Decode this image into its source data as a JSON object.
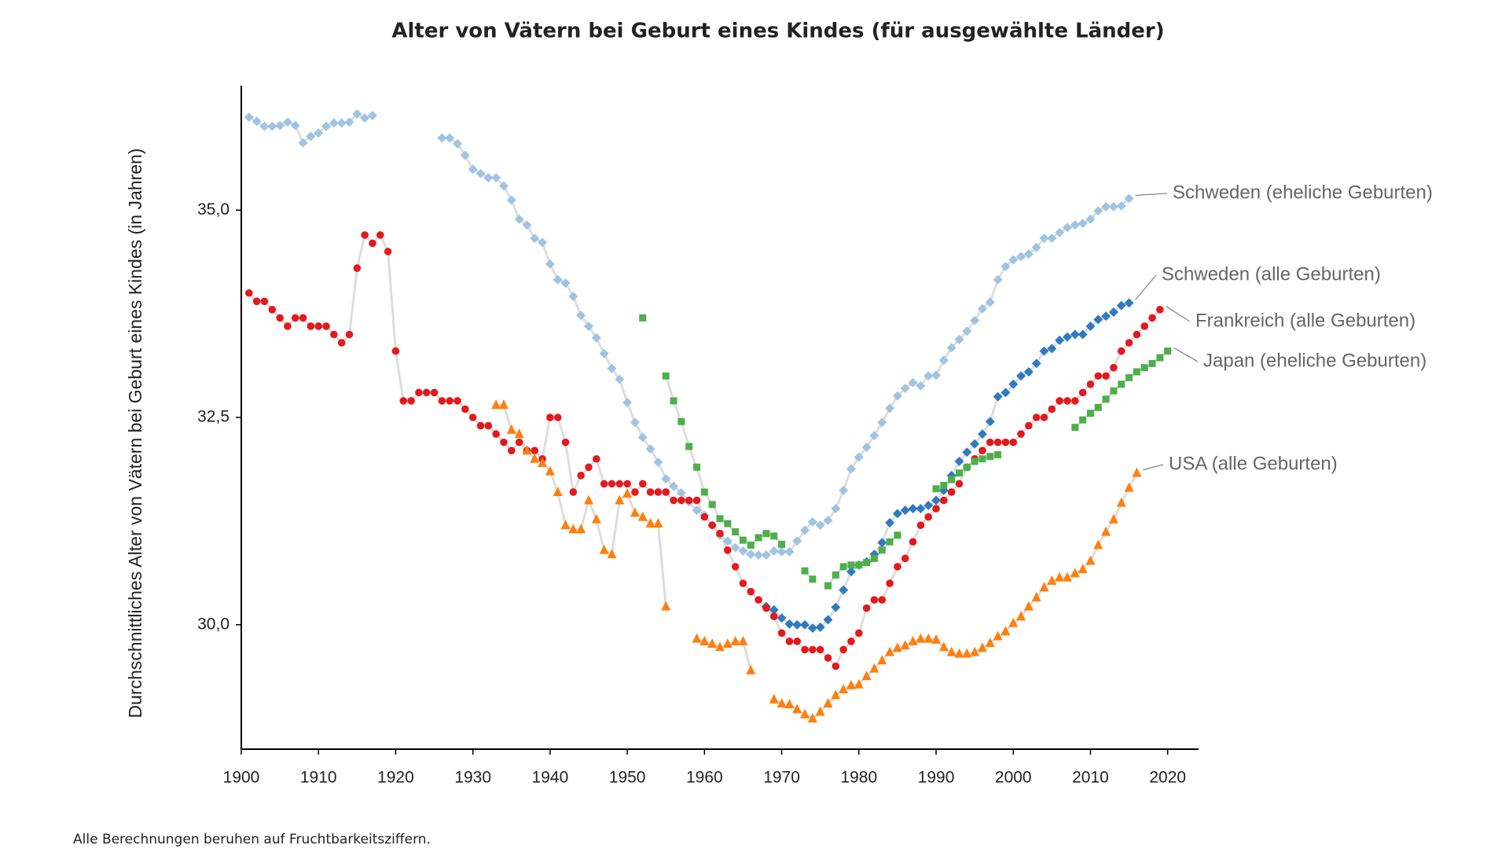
{
  "chart_data": {
    "type": "line",
    "title": "Alter von Vätern bei Geburt eines Kindes (für ausgewählte Länder)",
    "y_label": "Durchschnittliches Alter von Vätern bei Geburt eines Kindes (in Jahren)",
    "note": "Alle Berechnungen beruhen auf Fruchtbarkeitsziffern.",
    "xlim": [
      1900,
      2024
    ],
    "ylim": [
      28.5,
      36.5
    ],
    "xticks": [
      1900,
      1910,
      1920,
      1930,
      1940,
      1950,
      1960,
      1970,
      1980,
      1990,
      2000,
      2010,
      2020
    ],
    "yticks": [
      {
        "value": 30,
        "label": "30,0"
      },
      {
        "value": 32.5,
        "label": "32,5"
      },
      {
        "value": 35,
        "label": "35,0"
      }
    ],
    "grid": false,
    "line_color": "#dddddd",
    "x": [
      1901,
      1902,
      1903,
      1904,
      1905,
      1906,
      1907,
      1908,
      1909,
      1910,
      1911,
      1912,
      1913,
      1914,
      1915,
      1916,
      1917,
      1918,
      1919,
      1920,
      1921,
      1922,
      1923,
      1924,
      1925,
      1926,
      1927,
      1928,
      1929,
      1930,
      1931,
      1932,
      1933,
      1934,
      1935,
      1936,
      1937,
      1938,
      1939,
      1940,
      1941,
      1942,
      1943,
      1944,
      1945,
      1946,
      1947,
      1948,
      1949,
      1950,
      1951,
      1952,
      1953,
      1954,
      1955,
      1956,
      1957,
      1958,
      1959,
      1960,
      1961,
      1962,
      1963,
      1964,
      1965,
      1966,
      1967,
      1968,
      1969,
      1970,
      1971,
      1972,
      1973,
      1974,
      1975,
      1976,
      1977,
      1978,
      1979,
      1980,
      1981,
      1982,
      1983,
      1984,
      1985,
      1986,
      1987,
      1988,
      1989,
      1990,
      1991,
      1992,
      1993,
      1994,
      1995,
      1996,
      1997,
      1998,
      1999,
      2000,
      2001,
      2002,
      2003,
      2004,
      2005,
      2006,
      2007,
      2008,
      2009,
      2010,
      2011,
      2012,
      2013,
      2014,
      2015,
      2016,
      2017,
      2018,
      2019,
      2020
    ],
    "series": [
      {
        "name": "Schweden (eheliche Geburten)",
        "color": "#9fc4e3",
        "marker": "diamond",
        "values": [
          36.12,
          36.07,
          36.01,
          36.01,
          36.02,
          36.06,
          36.02,
          35.81,
          35.89,
          35.93,
          36.01,
          36.05,
          36.05,
          36.06,
          36.16,
          36.11,
          36.14,
          null,
          null,
          null,
          null,
          null,
          null,
          null,
          null,
          35.87,
          35.87,
          35.8,
          35.66,
          35.49,
          35.44,
          35.39,
          35.39,
          35.29,
          35.12,
          34.89,
          34.82,
          34.66,
          34.61,
          34.35,
          34.16,
          34.12,
          33.96,
          33.73,
          33.6,
          33.46,
          33.27,
          33.09,
          32.96,
          32.68,
          32.44,
          32.26,
          32.12,
          31.96,
          31.76,
          31.67,
          31.59,
          31.48,
          31.38,
          31.32,
          31.2,
          31.08,
          31.01,
          30.93,
          30.89,
          30.85,
          30.84,
          30.84,
          30.89,
          30.88,
          30.88,
          31.01,
          31.14,
          31.24,
          31.2,
          31.26,
          31.4,
          31.62,
          31.88,
          32.02,
          32.14,
          32.28,
          32.44,
          32.61,
          32.76,
          32.85,
          32.92,
          32.88,
          33.0,
          33.01,
          33.19,
          33.34,
          33.44,
          33.54,
          33.67,
          33.81,
          33.89,
          34.16,
          34.32,
          34.4,
          34.44,
          34.47,
          34.55,
          34.66,
          34.66,
          34.73,
          34.79,
          34.82,
          34.84,
          34.89,
          34.99,
          35.04,
          35.04,
          35.05,
          35.14,
          null,
          null,
          null,
          null,
          null
        ]
      },
      {
        "name": "Schweden (alle Geburten)",
        "color": "#2f7bbf",
        "marker": "diamond",
        "values": [
          null,
          null,
          null,
          null,
          null,
          null,
          null,
          null,
          null,
          null,
          null,
          null,
          null,
          null,
          null,
          null,
          null,
          null,
          null,
          null,
          null,
          null,
          null,
          null,
          null,
          null,
          null,
          null,
          null,
          null,
          null,
          null,
          null,
          null,
          null,
          null,
          null,
          null,
          null,
          null,
          null,
          null,
          null,
          null,
          null,
          null,
          null,
          null,
          null,
          null,
          null,
          null,
          null,
          null,
          null,
          null,
          null,
          null,
          null,
          null,
          null,
          null,
          null,
          null,
          null,
          null,
          null,
          30.22,
          30.18,
          30.08,
          30.01,
          30.0,
          30.0,
          29.96,
          29.97,
          30.06,
          30.21,
          30.42,
          30.64,
          30.72,
          30.76,
          30.85,
          30.99,
          31.23,
          31.34,
          31.38,
          31.4,
          31.4,
          31.44,
          31.5,
          31.62,
          31.8,
          31.97,
          32.08,
          32.18,
          32.3,
          32.45,
          32.75,
          32.8,
          32.9,
          33.0,
          33.05,
          33.15,
          33.3,
          33.33,
          33.43,
          33.47,
          33.5,
          33.5,
          33.6,
          33.68,
          33.72,
          33.77,
          33.85,
          33.88,
          null,
          null,
          null,
          null,
          null
        ]
      },
      {
        "name": "Frankreich (alle Geburten)",
        "color": "#e3191c",
        "marker": "circle",
        "values": [
          34.0,
          33.9,
          33.9,
          33.8,
          33.7,
          33.6,
          33.7,
          33.7,
          33.6,
          33.6,
          33.6,
          33.5,
          33.4,
          33.5,
          34.3,
          34.7,
          34.6,
          34.7,
          34.5,
          33.3,
          32.7,
          32.7,
          32.8,
          32.8,
          32.8,
          32.7,
          32.7,
          32.7,
          32.6,
          32.5,
          32.4,
          32.4,
          32.3,
          32.2,
          32.1,
          32.2,
          32.1,
          32.1,
          32.0,
          32.5,
          32.5,
          32.2,
          31.6,
          31.8,
          31.9,
          32.0,
          31.7,
          31.7,
          31.7,
          31.7,
          31.6,
          31.7,
          31.6,
          31.6,
          31.6,
          31.5,
          31.5,
          31.5,
          31.5,
          31.3,
          31.2,
          31.1,
          30.9,
          30.7,
          30.5,
          30.4,
          30.3,
          30.2,
          30.1,
          29.9,
          29.8,
          29.8,
          29.7,
          29.7,
          29.7,
          29.6,
          29.5,
          29.7,
          29.8,
          29.9,
          30.2,
          30.3,
          30.3,
          30.5,
          30.7,
          30.8,
          31.0,
          31.2,
          31.3,
          31.4,
          31.5,
          31.6,
          31.7,
          31.9,
          32.0,
          32.1,
          32.2,
          32.2,
          32.2,
          32.2,
          32.3,
          32.4,
          32.5,
          32.5,
          32.6,
          32.7,
          32.7,
          32.7,
          32.8,
          32.9,
          33.0,
          33.0,
          33.1,
          33.3,
          33.4,
          33.5,
          33.6,
          33.7,
          33.8,
          null
        ]
      },
      {
        "name": "Japan (eheliche Geburten)",
        "color": "#4daf4a",
        "marker": "square",
        "values": [
          null,
          null,
          null,
          null,
          null,
          null,
          null,
          null,
          null,
          null,
          null,
          null,
          null,
          null,
          null,
          null,
          null,
          null,
          null,
          null,
          null,
          null,
          null,
          null,
          null,
          null,
          null,
          null,
          null,
          null,
          null,
          null,
          null,
          null,
          null,
          null,
          null,
          null,
          null,
          null,
          null,
          null,
          null,
          null,
          null,
          null,
          null,
          null,
          null,
          null,
          null,
          33.7,
          null,
          null,
          33.0,
          32.7,
          32.45,
          32.15,
          31.9,
          31.6,
          31.45,
          31.28,
          31.22,
          31.12,
          31.02,
          30.96,
          31.05,
          31.1,
          31.07,
          30.97,
          null,
          null,
          30.65,
          30.55,
          null,
          30.47,
          30.6,
          30.7,
          30.72,
          30.72,
          30.75,
          30.8,
          30.9,
          31.0,
          31.08,
          null,
          null,
          null,
          null,
          31.64,
          31.68,
          31.75,
          31.83,
          31.9,
          31.97,
          32.0,
          32.03,
          32.05,
          null,
          null,
          null,
          null,
          null,
          null,
          null,
          null,
          null,
          32.38,
          32.47,
          32.55,
          32.62,
          32.72,
          32.82,
          32.9,
          32.98,
          33.05,
          33.1,
          33.15,
          33.22,
          33.3
        ]
      },
      {
        "name": "USA (alle Geburten)",
        "color": "#ff7f0e",
        "marker": "triangle",
        "values": [
          null,
          null,
          null,
          null,
          null,
          null,
          null,
          null,
          null,
          null,
          null,
          null,
          null,
          null,
          null,
          null,
          null,
          null,
          null,
          null,
          null,
          null,
          null,
          null,
          null,
          null,
          null,
          null,
          null,
          null,
          null,
          null,
          32.65,
          32.65,
          32.35,
          32.3,
          32.1,
          32.0,
          31.95,
          31.85,
          31.6,
          31.2,
          31.15,
          31.15,
          31.5,
          31.27,
          30.9,
          30.85,
          31.5,
          31.58,
          31.35,
          31.3,
          31.22,
          31.22,
          30.22,
          null,
          null,
          null,
          29.83,
          29.8,
          29.77,
          29.73,
          29.77,
          29.8,
          29.8,
          29.45,
          null,
          null,
          29.1,
          29.05,
          29.04,
          28.98,
          28.92,
          28.87,
          28.95,
          29.05,
          29.15,
          29.22,
          29.27,
          29.28,
          29.38,
          29.47,
          29.57,
          29.67,
          29.72,
          29.75,
          29.8,
          29.83,
          29.83,
          29.82,
          29.73,
          29.67,
          29.65,
          29.65,
          29.67,
          29.72,
          29.78,
          29.86,
          29.92,
          30.02,
          30.1,
          30.22,
          30.33,
          30.45,
          30.53,
          30.57,
          30.57,
          30.62,
          30.67,
          30.77,
          30.96,
          31.12,
          31.27,
          31.47,
          31.65,
          31.83,
          null,
          null,
          null,
          null
        ]
      }
    ]
  }
}
